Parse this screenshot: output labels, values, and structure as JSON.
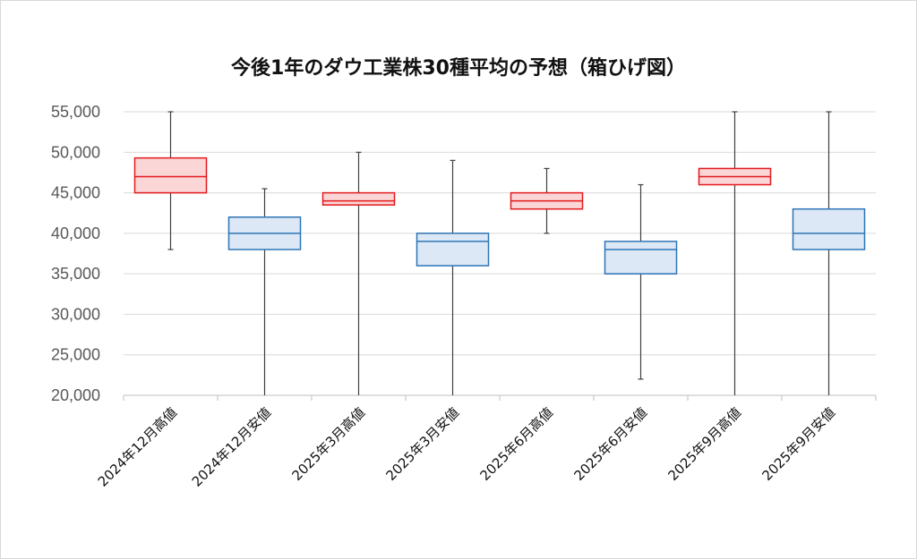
{
  "chart_data": {
    "type": "boxplot",
    "title": "今後1年のダウ工業株30種平均の予想（箱ひげ図）",
    "xlabel": "",
    "ylabel": "",
    "ylim": [
      20000,
      55000
    ],
    "yticks": [
      20000,
      25000,
      30000,
      35000,
      40000,
      45000,
      50000,
      55000
    ],
    "ytick_labels": [
      "20,000",
      "25,000",
      "30,000",
      "35,000",
      "40,000",
      "45,000",
      "50,000",
      "55,000"
    ],
    "grid": true,
    "legend": "none",
    "categories": [
      "2024年12月高値",
      "2024年12月安値",
      "2025年3月高値",
      "2025年3月安値",
      "2025年6月高値",
      "2025年6月安値",
      "2025年9月高値",
      "2025年9月安値"
    ],
    "series": [
      {
        "kind": "高値",
        "color": "#e3191c",
        "fill": "#fbd6d7",
        "points": [
          {
            "category": "2024年12月高値",
            "min": 38000,
            "q1": 45000,
            "median": 47000,
            "q3": 49300,
            "max": 55000
          },
          {
            "category": "2025年3月高値",
            "min": 20000,
            "q1": 43500,
            "median": 44000,
            "q3": 45000,
            "max": 50000
          },
          {
            "category": "2025年6月高値",
            "min": 40000,
            "q1": 43000,
            "median": 44000,
            "q3": 45000,
            "max": 48000
          },
          {
            "category": "2025年9月高値",
            "min": 20000,
            "q1": 46000,
            "median": 47000,
            "q3": 48000,
            "max": 55000
          }
        ]
      },
      {
        "kind": "安値",
        "color": "#2e75b6",
        "fill": "#dce8f5",
        "points": [
          {
            "category": "2024年12月安値",
            "min": 20000,
            "q1": 38000,
            "median": 40000,
            "q3": 42000,
            "max": 45500
          },
          {
            "category": "2025年3月安値",
            "min": 20000,
            "q1": 36000,
            "median": 39000,
            "q3": 40000,
            "max": 49000
          },
          {
            "category": "2025年6月安値",
            "min": 22000,
            "q1": 35000,
            "median": 38000,
            "q3": 39000,
            "max": 46000
          },
          {
            "category": "2025年9月安値",
            "min": 20000,
            "q1": 38000,
            "median": 40000,
            "q3": 43000,
            "max": 55000
          }
        ]
      }
    ],
    "whisker_color": "#404040",
    "grid_color": "#d9d9d9",
    "axis_color": "#bfbfbf"
  }
}
